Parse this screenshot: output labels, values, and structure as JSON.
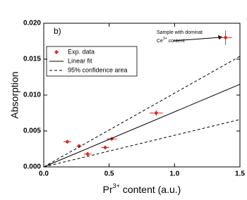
{
  "chart_data": {
    "type": "scatter",
    "panel_label": "b)",
    "x_label": {
      "base": "Pr",
      "sup": "3+",
      "rest": " content (a.u.)"
    },
    "y_label": "Absorption",
    "annotation": {
      "line1": "Sample with dominat",
      "base": "Ce",
      "sup": "3+",
      "rest": " content"
    },
    "xlim": [
      0,
      1.5
    ],
    "ylim": [
      0,
      0.02
    ],
    "xticks": [
      {
        "value": 0,
        "label": "0.0"
      },
      {
        "value": 0.5,
        "label": "0.5"
      },
      {
        "value": 1,
        "label": "1.0"
      },
      {
        "value": 1.5,
        "label": "1.5"
      }
    ],
    "yticks": [
      {
        "value": 0,
        "label": "0.000"
      },
      {
        "value": 0.005,
        "label": "0.005"
      },
      {
        "value": 0.01,
        "label": "0.010"
      },
      {
        "value": 0.015,
        "label": "0.015"
      },
      {
        "value": 0.02,
        "label": "0.020"
      }
    ],
    "legend": "upper left",
    "series": [
      {
        "name": "Exp. data",
        "color": "#d62b1e",
        "style": "points",
        "x": [
          0.18,
          0.27,
          0.335,
          0.47,
          0.52,
          0.86,
          1.39
        ],
        "values": [
          0.0035,
          0.0029,
          0.0018,
          0.0027,
          0.0039,
          0.0075,
          0.018
        ],
        "xerr": [
          0.03,
          0.02,
          0.03,
          0.03,
          0.04,
          0.05,
          0.05
        ],
        "yerr": [
          0.0002,
          0.0002,
          0.0002,
          0.0002,
          0.0002,
          0.0004,
          0.001
        ]
      },
      {
        "name": "Linear fit",
        "color": "#000000",
        "style": "solid",
        "x": [
          0,
          1.5
        ],
        "values": [
          0,
          0.0115
        ]
      },
      {
        "name": "95% confidence area",
        "color": "#000000",
        "style": "dashed",
        "x": [
          0,
          1.5
        ],
        "values": [
          0,
          0.0154
        ]
      },
      {
        "name": null,
        "color": "#000000",
        "style": "dashed",
        "x": [
          0,
          1.5
        ],
        "values": [
          0,
          0.0066
        ]
      }
    ]
  }
}
